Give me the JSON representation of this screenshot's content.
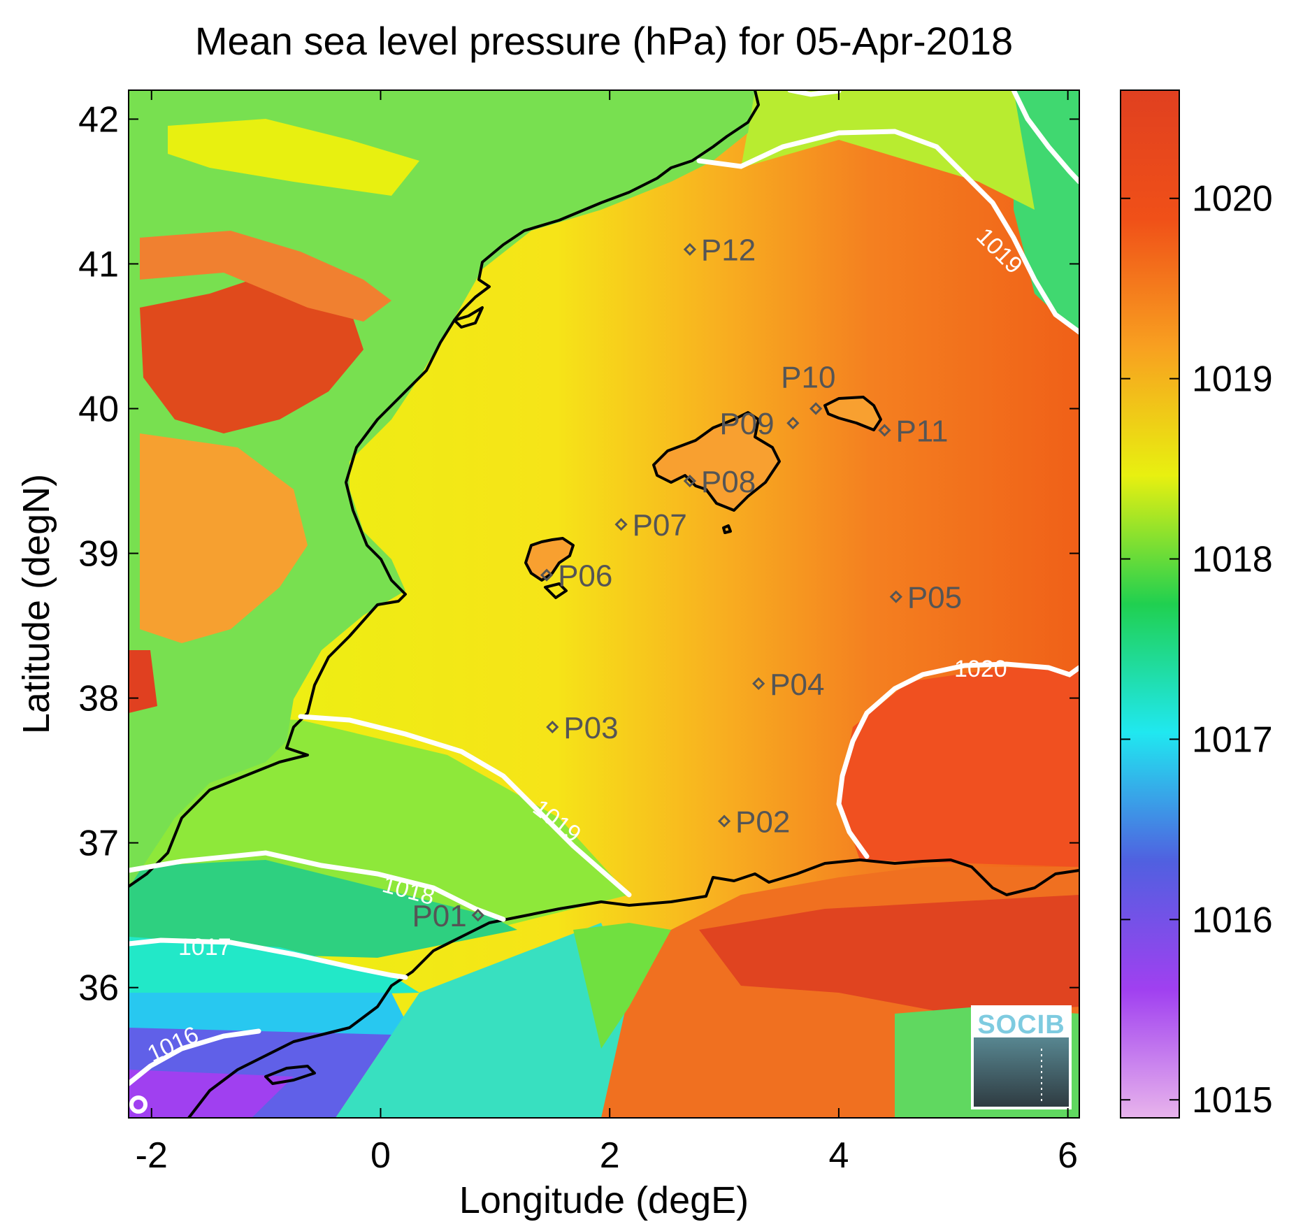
{
  "title": "Mean sea level pressure (hPa) for 05-Apr-2018",
  "colors": {
    "land": "#e0f000",
    "sea_low": "#22d07a",
    "sea_mid": "#f2ec10",
    "sea_high": "#f06018",
    "coast": "#000000",
    "contour": "#ffffff",
    "station": "#555555"
  },
  "chart_data": {
    "type": "heatmap",
    "xlabel": "Longitude (degE)",
    "ylabel": "Latitude (degN)",
    "xlim": [
      -2.2,
      6.1
    ],
    "ylim": [
      35.1,
      42.2
    ],
    "x_ticks": [
      -2,
      0,
      2,
      4,
      6
    ],
    "x_tick_labels": [
      "-2",
      "0",
      "2",
      "4",
      "6"
    ],
    "y_ticks": [
      36,
      37,
      38,
      39,
      40,
      41,
      42
    ],
    "y_tick_labels": [
      "36",
      "37",
      "38",
      "39",
      "40",
      "41",
      "42"
    ],
    "colorbar": {
      "range": [
        1014.9,
        1020.6
      ],
      "ticks": [
        1015,
        1016,
        1017,
        1018,
        1019,
        1020
      ],
      "tick_labels": [
        "1015",
        "1016",
        "1017",
        "1018",
        "1019",
        "1020"
      ],
      "colormap": [
        "#e8b4ec",
        "#a040f0",
        "#5060e0",
        "#20e8f0",
        "#20d050",
        "#e8f010",
        "#f8a020",
        "#f05018",
        "#e04020"
      ]
    },
    "contour_labels": [
      {
        "text": "1016",
        "lon": -1.8,
        "lat": 35.6
      },
      {
        "text": "1017",
        "lon": -1.6,
        "lat": 36.4
      },
      {
        "text": "1018",
        "lon": 0.25,
        "lat": 36.7
      },
      {
        "text": "1019",
        "lon": 1.5,
        "lat": 37.3
      },
      {
        "text": "1019",
        "lon": 4.6,
        "lat": 41.0
      },
      {
        "text": "1020",
        "lon": 4.3,
        "lat": 38.3
      }
    ],
    "stations": [
      {
        "name": "P01",
        "lon": 0.85,
        "lat": 36.5
      },
      {
        "name": "P02",
        "lon": 3.0,
        "lat": 37.15
      },
      {
        "name": "P03",
        "lon": 1.5,
        "lat": 37.8
      },
      {
        "name": "P04",
        "lon": 3.3,
        "lat": 38.1
      },
      {
        "name": "P05",
        "lon": 4.5,
        "lat": 38.7
      },
      {
        "name": "P06",
        "lon": 1.45,
        "lat": 38.85
      },
      {
        "name": "P07",
        "lon": 2.1,
        "lat": 39.2
      },
      {
        "name": "P08",
        "lon": 2.7,
        "lat": 39.5
      },
      {
        "name": "P09",
        "lon": 3.6,
        "lat": 39.9
      },
      {
        "name": "P10",
        "lon": 3.8,
        "lat": 40.0
      },
      {
        "name": "P11",
        "lon": 4.4,
        "lat": 39.85
      },
      {
        "name": "P12",
        "lon": 2.7,
        "lat": 41.1
      }
    ]
  },
  "logo": {
    "text": "SOCIB"
  }
}
